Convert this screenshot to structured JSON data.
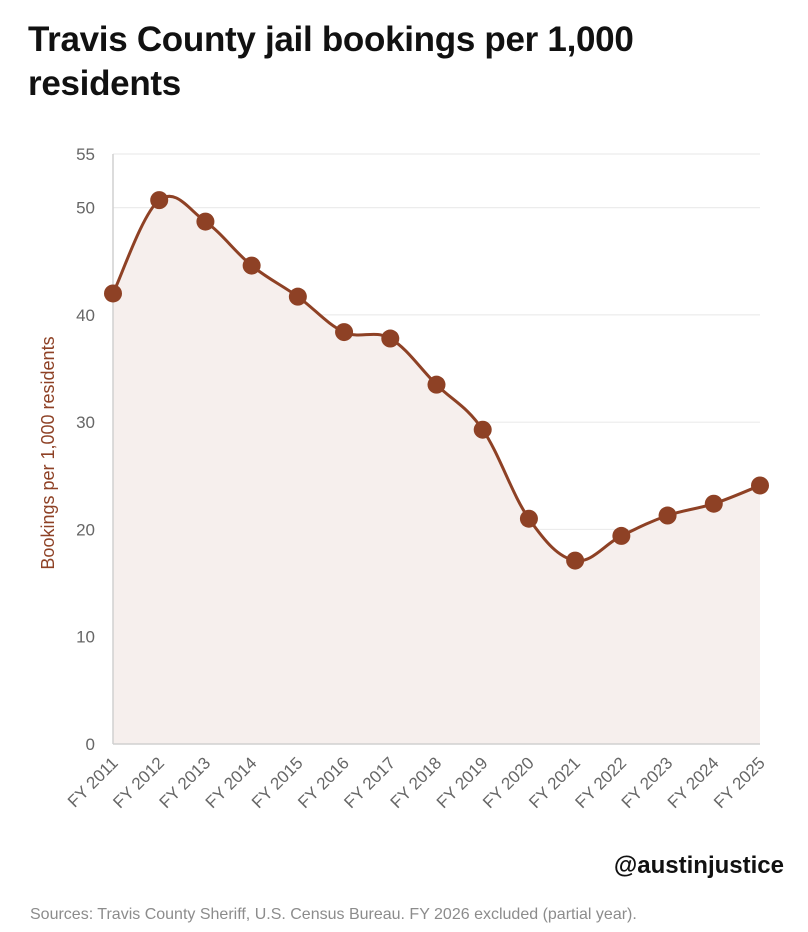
{
  "title": "Travis County jail bookings per 1,000 residents",
  "handle": "@austinjustice",
  "sources": "Sources: Travis County Sheriff, U.S. Census Bureau. FY 2026 excluded (partial year).",
  "colors": {
    "line": "#8e4125",
    "fill": "#f6efed",
    "grid": "#ececec",
    "axis": "#d0d0d0",
    "tick": "#666666"
  },
  "chart_data": {
    "type": "area",
    "title": "Travis County jail bookings per 1,000 residents",
    "xlabel": "",
    "ylabel": "Bookings per 1,000 residents",
    "categories": [
      "FY 2011",
      "FY 2012",
      "FY 2013",
      "FY 2014",
      "FY 2015",
      "FY 2016",
      "FY 2017",
      "FY 2018",
      "FY 2019",
      "FY 2020",
      "FY 2021",
      "FY 2022",
      "FY 2023",
      "FY 2024",
      "FY 2025"
    ],
    "values": [
      42.0,
      50.7,
      48.7,
      44.6,
      41.7,
      38.4,
      37.8,
      33.5,
      29.3,
      21.0,
      17.1,
      19.4,
      21.3,
      22.4,
      24.1
    ],
    "yticks": [
      0,
      10,
      20,
      30,
      40,
      50,
      55
    ],
    "ylim": [
      0,
      55
    ],
    "grid": true,
    "legend": "none"
  }
}
